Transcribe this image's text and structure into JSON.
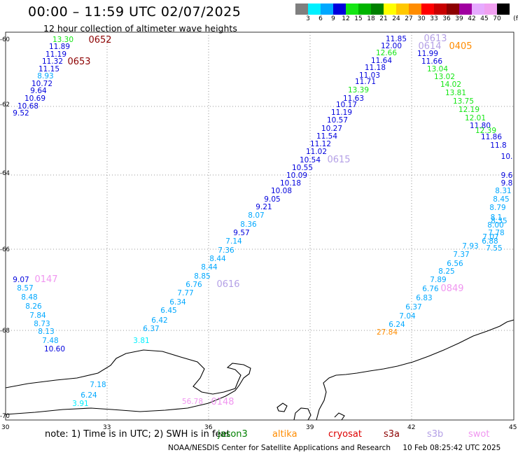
{
  "header": {
    "title": "00:00 – 11:59 UTC 02/07/2025",
    "subtitle": "12 hour collection of altimeter wave heights"
  },
  "legend": {
    "colors": [
      "#7f7f7f",
      "#00f0ff",
      "#00a8ff",
      "#0000dd",
      "#14e614",
      "#00b400",
      "#008000",
      "#ffff00",
      "#ffc800",
      "#ff8c00",
      "#ff0000",
      "#c80000",
      "#8c0000",
      "#a000a0",
      "#e6aaff",
      "#f0a0f0",
      "#000000"
    ],
    "ticks": [
      "3",
      "6",
      "9",
      "12",
      "15",
      "18",
      "21",
      "24",
      "27",
      "30",
      "33",
      "36",
      "39",
      "42",
      "45",
      "70",
      "(ft)"
    ]
  },
  "axes": {
    "y_labels": [
      "-60",
      "-62",
      "-64",
      "-66",
      "-68",
      "-70"
    ],
    "x_labels": [
      "30",
      "33",
      "36",
      "39",
      "42",
      "45"
    ]
  },
  "satellite_legend": {
    "prefix": "note:  1) Time is in UTC;  2) SWH is in feet",
    "items": [
      {
        "name": "jason3",
        "color": "#008000"
      },
      {
        "name": "altika",
        "color": "#ff8c00"
      },
      {
        "name": "cryosat",
        "color": "#dd0000"
      },
      {
        "name": "s3a",
        "color": "#8c0000"
      },
      {
        "name": "s3b",
        "color": "#b4a0e6"
      },
      {
        "name": "swot",
        "color": "#f096f0"
      }
    ]
  },
  "footer": {
    "credit": "NOAA/NESDIS Center for Satellite Applications and Research",
    "timestamp": "10 Feb 08:25:42 UTC 2025"
  },
  "pass_labels": [
    {
      "text": "0652",
      "color": "#8c0000"
    },
    {
      "text": "0653",
      "color": "#8c0000"
    },
    {
      "text": "0613",
      "color": "#b4a0e6"
    },
    {
      "text": "0614",
      "color": "#b4a0e6"
    },
    {
      "text": "0405",
      "color": "#ff8c00"
    },
    {
      "text": "0615",
      "color": "#b4a0e6"
    },
    {
      "text": "0616",
      "color": "#b4a0e6"
    },
    {
      "text": "0147",
      "color": "#f096f0"
    },
    {
      "text": "0849",
      "color": "#f096f0"
    },
    {
      "text": "0148",
      "color": "#f096f0"
    }
  ],
  "tracks": [
    {
      "name": "track-a",
      "values": [
        {
          "v": "13.30",
          "c": "#14e614"
        },
        {
          "v": "11.89",
          "c": "#0000dd"
        },
        {
          "v": "11.19",
          "c": "#0000dd"
        },
        {
          "v": "11.32",
          "c": "#0000dd"
        },
        {
          "v": "11.15",
          "c": "#0000dd"
        },
        {
          "v": "8.93",
          "c": "#00a8ff"
        },
        {
          "v": "10.72",
          "c": "#0000dd"
        },
        {
          "v": "9.64",
          "c": "#0000dd"
        },
        {
          "v": "10.69",
          "c": "#0000dd"
        },
        {
          "v": "10.68",
          "c": "#0000dd"
        },
        {
          "v": "9.52",
          "c": "#0000dd"
        }
      ]
    },
    {
      "name": "track-b",
      "values": [
        {
          "v": "9.07",
          "c": "#0000dd"
        },
        {
          "v": "8.57",
          "c": "#00a8ff"
        },
        {
          "v": "8.48",
          "c": "#00a8ff"
        },
        {
          "v": "8.26",
          "c": "#00a8ff"
        },
        {
          "v": "7.84",
          "c": "#00a8ff"
        },
        {
          "v": "8.73",
          "c": "#00a8ff"
        },
        {
          "v": "8.13",
          "c": "#00a8ff"
        },
        {
          "v": "7.48",
          "c": "#00a8ff"
        },
        {
          "v": "10.60",
          "c": "#0000dd"
        }
      ]
    },
    {
      "name": "track-c",
      "values": [
        {
          "v": "7.18",
          "c": "#00a8ff"
        },
        {
          "v": "6.24",
          "c": "#00a8ff"
        },
        {
          "v": "3.91",
          "c": "#00f0ff"
        }
      ]
    },
    {
      "name": "track-d",
      "values": [
        {
          "v": "3.81",
          "c": "#00f0ff"
        },
        {
          "v": "6.37",
          "c": "#00a8ff"
        },
        {
          "v": "6.42",
          "c": "#00a8ff"
        },
        {
          "v": "6.45",
          "c": "#00a8ff"
        },
        {
          "v": "6.34",
          "c": "#00a8ff"
        },
        {
          "v": "7.77",
          "c": "#00a8ff"
        },
        {
          "v": "6.76",
          "c": "#00a8ff"
        },
        {
          "v": "8.85",
          "c": "#00a8ff"
        },
        {
          "v": "8.44",
          "c": "#00a8ff"
        },
        {
          "v": "8.44",
          "c": "#00a8ff"
        },
        {
          "v": "7.36",
          "c": "#00a8ff"
        },
        {
          "v": "7.14",
          "c": "#00a8ff"
        },
        {
          "v": "9.57",
          "c": "#0000dd"
        },
        {
          "v": "8.36",
          "c": "#00a8ff"
        },
        {
          "v": "8.07",
          "c": "#00a8ff"
        },
        {
          "v": "9.21",
          "c": "#0000dd"
        },
        {
          "v": "9.05",
          "c": "#0000dd"
        },
        {
          "v": "10.08",
          "c": "#0000dd"
        },
        {
          "v": "10.18",
          "c": "#0000dd"
        },
        {
          "v": "10.09",
          "c": "#0000dd"
        },
        {
          "v": "10.55",
          "c": "#0000dd"
        },
        {
          "v": "10.54",
          "c": "#0000dd"
        },
        {
          "v": "11.02",
          "c": "#0000dd"
        },
        {
          "v": "11.12",
          "c": "#0000dd"
        },
        {
          "v": "11.54",
          "c": "#0000dd"
        },
        {
          "v": "10.27",
          "c": "#0000dd"
        },
        {
          "v": "10.57",
          "c": "#0000dd"
        },
        {
          "v": "11.19",
          "c": "#0000dd"
        },
        {
          "v": "10.17",
          "c": "#0000dd"
        },
        {
          "v": "11.63",
          "c": "#0000dd"
        },
        {
          "v": "13.39",
          "c": "#14e614"
        },
        {
          "v": "11.71",
          "c": "#0000dd"
        },
        {
          "v": "11.03",
          "c": "#0000dd"
        },
        {
          "v": "11.18",
          "c": "#0000dd"
        },
        {
          "v": "11.64",
          "c": "#0000dd"
        },
        {
          "v": "12.66",
          "c": "#14e614"
        },
        {
          "v": "12.00",
          "c": "#0000dd"
        },
        {
          "v": "11.85",
          "c": "#0000dd"
        }
      ]
    },
    {
      "name": "track-e",
      "values": [
        {
          "v": "11.99",
          "c": "#0000dd"
        },
        {
          "v": "11.66",
          "c": "#0000dd"
        },
        {
          "v": "13.04",
          "c": "#14e614"
        },
        {
          "v": "13.02",
          "c": "#14e614"
        },
        {
          "v": "14.02",
          "c": "#14e614"
        },
        {
          "v": "13.81",
          "c": "#14e614"
        },
        {
          "v": "13.75",
          "c": "#14e614"
        },
        {
          "v": "12.19",
          "c": "#14e614"
        },
        {
          "v": "12.01",
          "c": "#14e614"
        },
        {
          "v": "11.80",
          "c": "#0000dd"
        },
        {
          "v": "12.39",
          "c": "#14e614"
        },
        {
          "v": "11.86",
          "c": "#0000dd"
        },
        {
          "v": "11.8",
          "c": "#0000dd"
        },
        {
          "v": "10.",
          "c": "#0000dd"
        },
        {
          "v": "9.6",
          "c": "#0000dd"
        },
        {
          "v": "9.8",
          "c": "#0000dd"
        },
        {
          "v": "8.31",
          "c": "#00a8ff"
        },
        {
          "v": "8.45",
          "c": "#00a8ff"
        },
        {
          "v": "8.79",
          "c": "#00a8ff"
        },
        {
          "v": "8.1",
          "c": "#00a8ff"
        },
        {
          "v": "8.35",
          "c": "#00a8ff"
        },
        {
          "v": "8.00",
          "c": "#00a8ff"
        },
        {
          "v": "7.78",
          "c": "#00a8ff"
        },
        {
          "v": "7.55",
          "c": "#00a8ff"
        },
        {
          "v": "7.07",
          "c": "#00a8ff"
        },
        {
          "v": "6.88",
          "c": "#00a8ff"
        }
      ]
    },
    {
      "name": "track-f",
      "values": [
        {
          "v": "7.93",
          "c": "#00a8ff"
        },
        {
          "v": "7.37",
          "c": "#00a8ff"
        },
        {
          "v": "6.56",
          "c": "#00a8ff"
        },
        {
          "v": "8.25",
          "c": "#00a8ff"
        },
        {
          "v": "7.89",
          "c": "#00a8ff"
        },
        {
          "v": "6.76",
          "c": "#00a8ff"
        },
        {
          "v": "6.83",
          "c": "#00a8ff"
        },
        {
          "v": "6.37",
          "c": "#00a8ff"
        },
        {
          "v": "7.04",
          "c": "#00a8ff"
        },
        {
          "v": "6.24",
          "c": "#00a8ff"
        },
        {
          "v": "27.84",
          "c": "#ff8c00"
        }
      ]
    },
    {
      "name": "track-g",
      "values": [
        {
          "v": "56.78",
          "c": "#f096f0"
        }
      ]
    }
  ]
}
